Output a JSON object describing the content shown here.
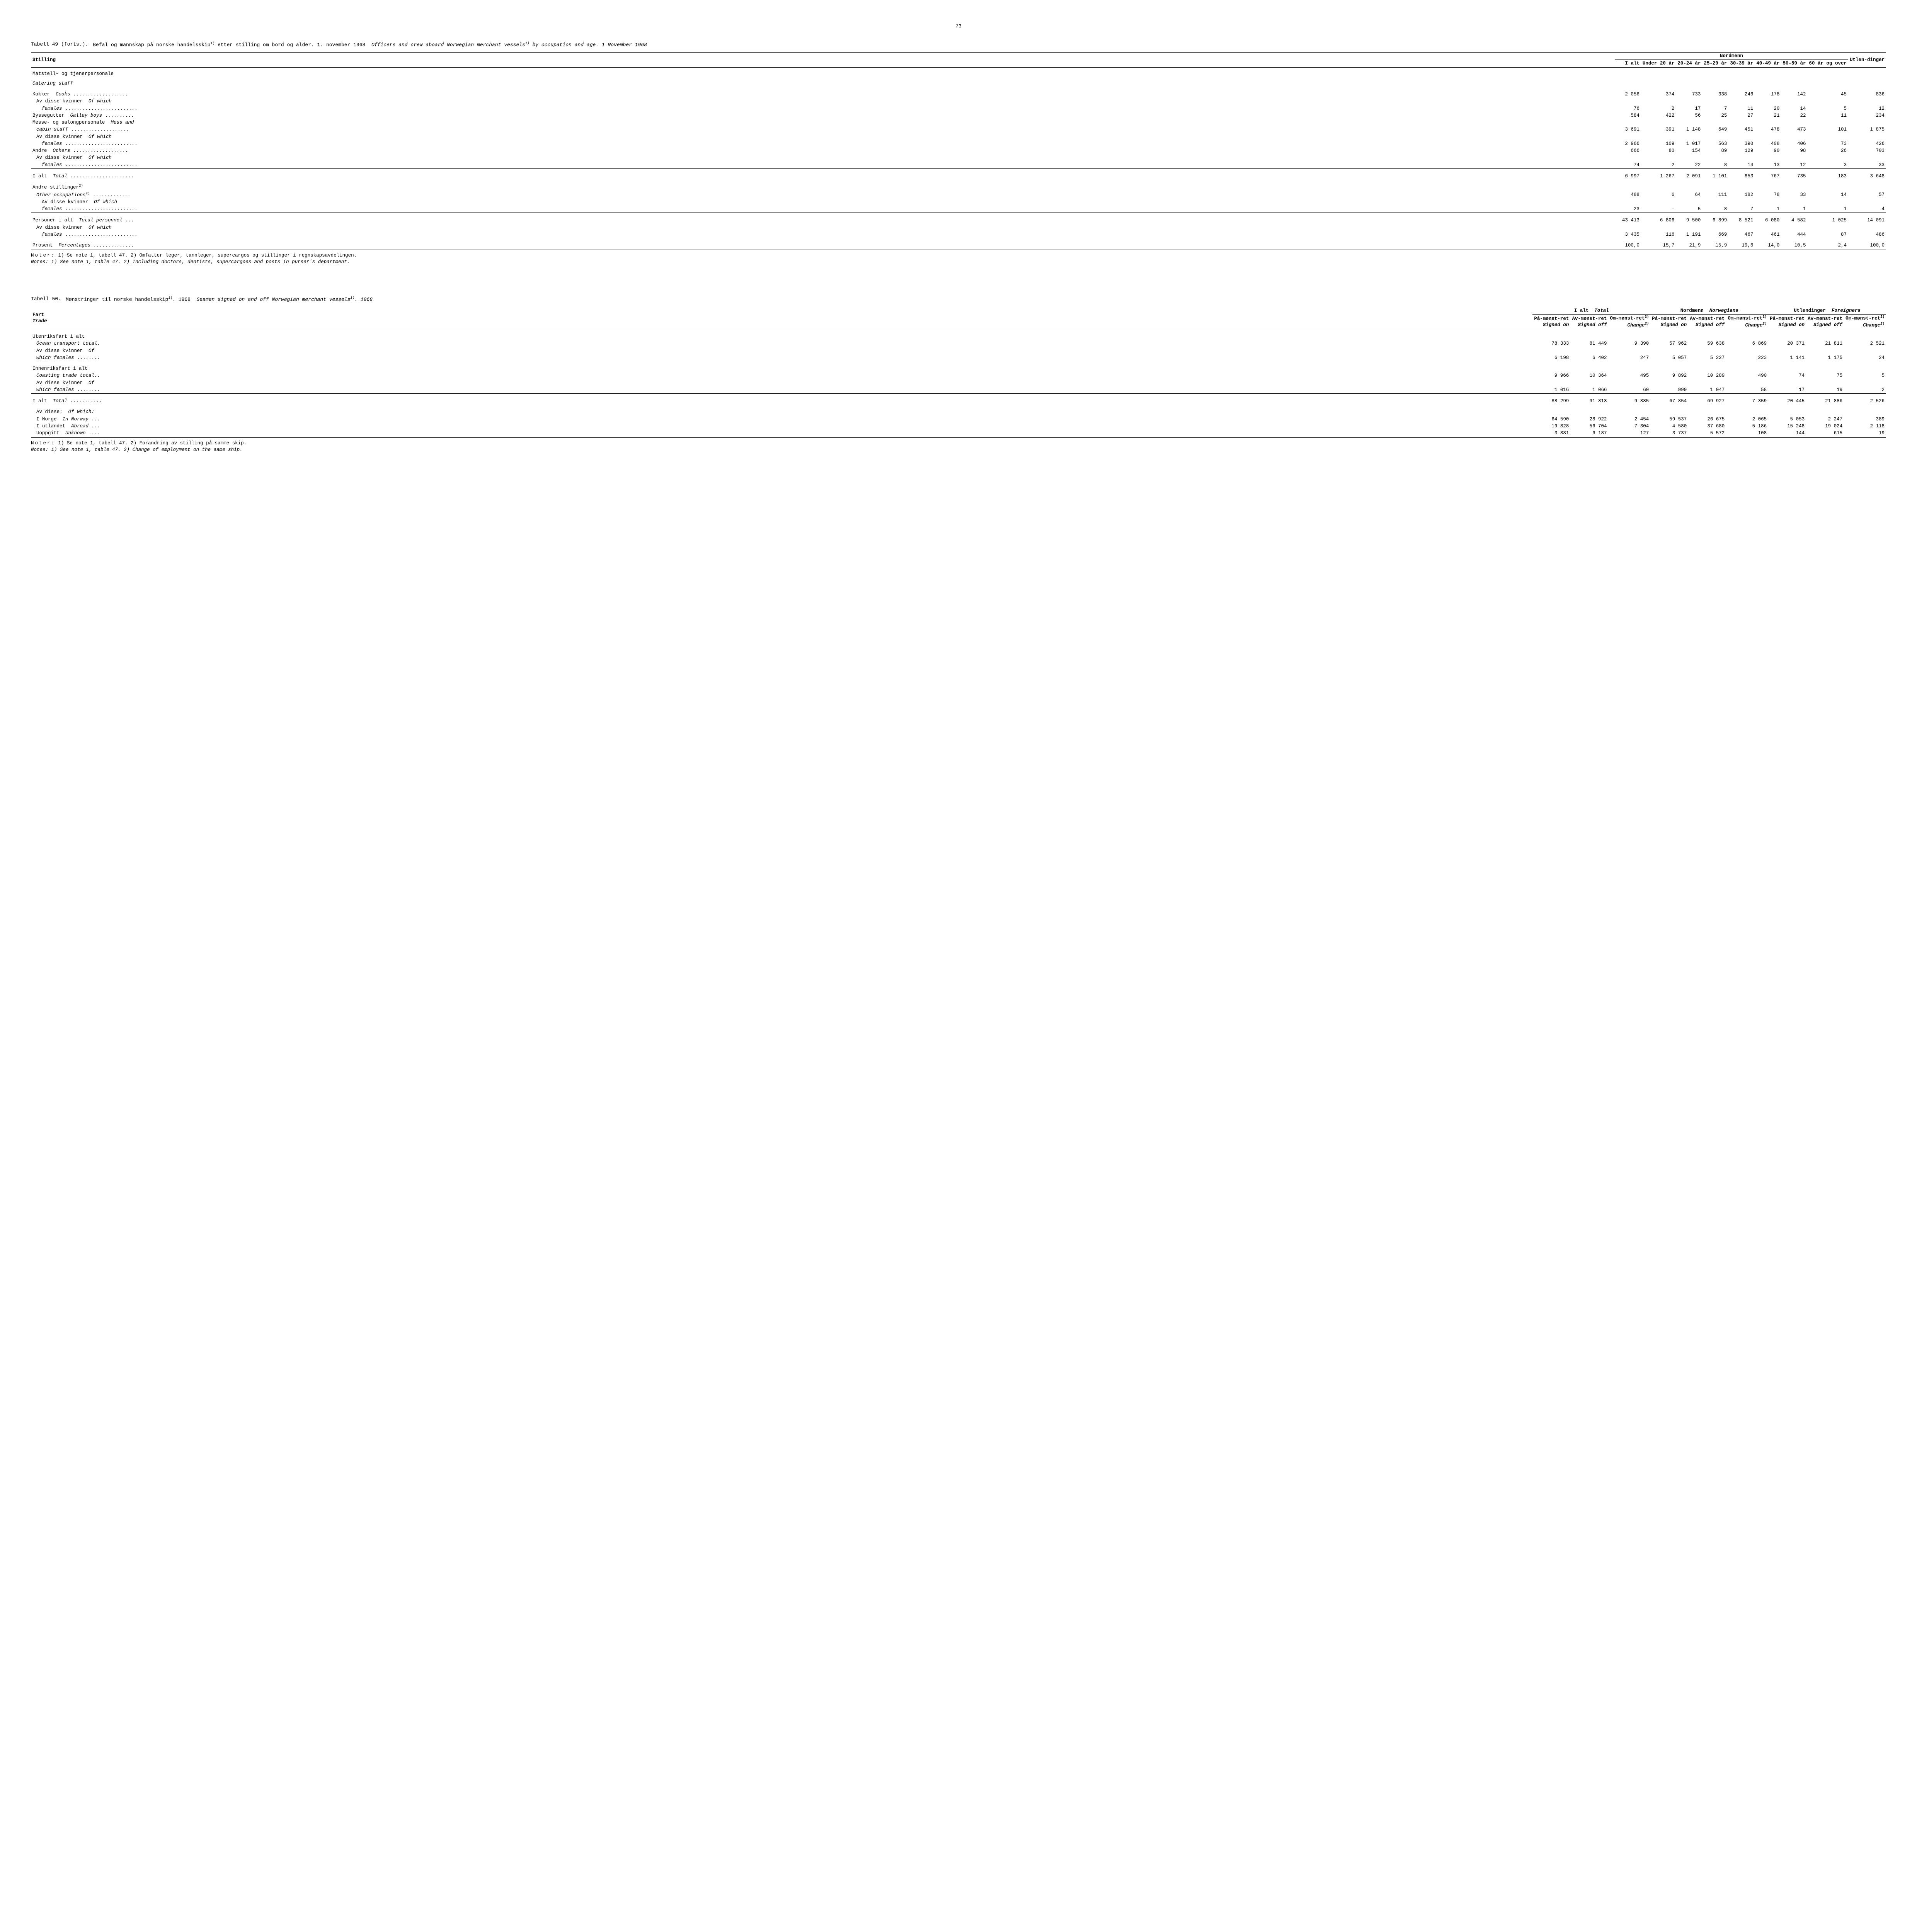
{
  "page_number": "73",
  "table49": {
    "label": "Tabell 49 (forts.).",
    "title_no": "Befal og mannskap på norske handelsskip",
    "title_no_2": " etter stilling om bord og alder. 1. november 1968",
    "title_en": "Officers and crew aboard Norwegian merchant vessels",
    "title_en_2": " by occupation and age.  1 November 1968",
    "sup": "1)",
    "headers": {
      "stilling": "Stilling",
      "nordmenn": "Nordmenn",
      "ialt": "I alt",
      "under20": "Under 20 år",
      "a2024": "20-24 år",
      "a2529": "25-29 år",
      "a3039": "30-39 år",
      "a4049": "40-49 år",
      "a5059": "50-59 år",
      "a60": "60 år og over",
      "utlen": "Utlen-dinger"
    },
    "section_header": "Matstell- og tjenerpersonale",
    "section_header_en": "Catering staff",
    "rows": [
      {
        "label": "Kokker",
        "label_en": "Cooks",
        "dots": "...................",
        "c": [
          "2 056",
          "374",
          "733",
          "338",
          "246",
          "178",
          "142",
          "45",
          "836"
        ]
      },
      {
        "label": "Av disse kvinner",
        "label_en": "Of which",
        "indent": 1
      },
      {
        "label": "females",
        "en_only": true,
        "dots": ".........................",
        "indent": 2,
        "c": [
          "76",
          "2",
          "17",
          "7",
          "11",
          "20",
          "14",
          "5",
          "12"
        ]
      },
      {
        "label": "Byssegutter",
        "label_en": "Galley boys",
        "dots": "..........",
        "c": [
          "584",
          "422",
          "56",
          "25",
          "27",
          "21",
          "22",
          "11",
          "234"
        ]
      },
      {
        "label": "Messe- og salongpersonale",
        "label_en": "Mess and",
        "nowrap": true
      },
      {
        "label": "cabin staff",
        "en_only": true,
        "dots": "....................",
        "indent": 1,
        "c": [
          "3 691",
          "391",
          "1 148",
          "649",
          "451",
          "478",
          "473",
          "101",
          "1 875"
        ]
      },
      {
        "label": "Av disse kvinner",
        "label_en": "Of which",
        "indent": 1
      },
      {
        "label": "females",
        "en_only": true,
        "dots": ".........................",
        "indent": 2,
        "c": [
          "2 966",
          "109",
          "1 017",
          "563",
          "390",
          "408",
          "406",
          "73",
          "426"
        ]
      },
      {
        "label": "Andre",
        "label_en": "Others",
        "dots": "...................",
        "c": [
          "666",
          "80",
          "154",
          "89",
          "129",
          "90",
          "98",
          "26",
          "703"
        ]
      },
      {
        "label": "Av disse kvinner",
        "label_en": "Of which",
        "indent": 1
      },
      {
        "label": "females",
        "en_only": true,
        "dots": ".........................",
        "indent": 2,
        "c": [
          "74",
          "2",
          "22",
          "8",
          "14",
          "13",
          "12",
          "3",
          "33"
        ],
        "rule": true
      },
      {
        "spacer": true
      },
      {
        "label": "I alt",
        "label_en": "Total",
        "dots": "......................",
        "c": [
          "6 997",
          "1 267",
          "2 091",
          "1 101",
          "853",
          "767",
          "735",
          "183",
          "3 648"
        ]
      },
      {
        "spacer": true
      },
      {
        "label": "Andre stillinger",
        "sup": "2)"
      },
      {
        "label": "Other occupations",
        "en_only": true,
        "sup": "2)",
        "dots": ".............",
        "indent": 1,
        "c": [
          "488",
          "6",
          "64",
          "111",
          "182",
          "78",
          "33",
          "14",
          "57"
        ]
      },
      {
        "label": "Av disse kvinner",
        "label_en": "Of which",
        "indent": 2
      },
      {
        "label": "females",
        "en_only": true,
        "dots": ".........................",
        "indent": 2,
        "c": [
          "23",
          "-",
          "5",
          "8",
          "7",
          "1",
          "1",
          "1",
          "4"
        ],
        "rule": true
      },
      {
        "spacer": true
      },
      {
        "label": "Personer i alt",
        "label_en": "Total personnel",
        "dots": "...",
        "c": [
          "43 413",
          "6 806",
          "9 500",
          "6 899",
          "8 521",
          "6 080",
          "4 582",
          "1 025",
          "14 091"
        ]
      },
      {
        "label": "Av disse kvinner",
        "label_en": "Of which",
        "indent": 1
      },
      {
        "label": "females",
        "en_only": true,
        "dots": ".........................",
        "indent": 2,
        "c": [
          "3 435",
          "116",
          "1 191",
          "669",
          "467",
          "461",
          "444",
          "87",
          "486"
        ]
      },
      {
        "spacer": true
      },
      {
        "label": "Prosent",
        "label_en": "Percentages",
        "dots": "..............",
        "c": [
          "100,0",
          "15,7",
          "21,9",
          "15,9",
          "19,6",
          "14,0",
          "10,5",
          "2,4",
          "100,0"
        ]
      }
    ],
    "notes_label": "Noter:",
    "notes_no": "1) Se note 1, tabell 47.  2) Omfatter leger, tannleger, supercargos og stillinger i regnskapsavdelingen.",
    "notes_en_label": "Notes:",
    "notes_en": "1) See note 1, table 47.  2) Including doctors, dentists, supercargoes and posts in purser's department."
  },
  "table50": {
    "label": "Tabell 50.",
    "title_no": "Mønstringer til norske handelsskip",
    "title_no_2": ".  1968",
    "title_en": "Seamen signed on and off Norwegian merchant vessels",
    "title_en_2": ".  1968",
    "sup": "1)",
    "headers": {
      "fart": "Fart",
      "fart_en": "Trade",
      "ialt": "I alt",
      "ialt_en": "Total",
      "nordmenn": "Nordmenn",
      "nordmenn_en": "Norwegians",
      "utlendinger": "Utlendinger",
      "utlendinger_en": "Foreigners",
      "pa": "På-mønst-ret",
      "pa_en": "Signed on",
      "av": "Av-mønst-ret",
      "av_en": "Signed off",
      "om": "Om-mønst-ret",
      "om_sup": "2)",
      "om_en": "Change",
      "om_en_sup": "2)"
    },
    "rows": [
      {
        "label": "Utenriksfart i alt"
      },
      {
        "label": "Ocean transport total.",
        "en_only": true,
        "indent": 1,
        "c": [
          "78 333",
          "81 449",
          "9 390",
          "57 962",
          "59 638",
          "6 869",
          "20 371",
          "21 811",
          "2 521"
        ]
      },
      {
        "label": "Av disse kvinner",
        "label_en": "Of",
        "indent": 1
      },
      {
        "label": "which females",
        "en_only": true,
        "dots": "........",
        "indent": 1,
        "c": [
          "6 198",
          "6 402",
          "247",
          "5 057",
          "5 227",
          "223",
          "1 141",
          "1 175",
          "24"
        ]
      },
      {
        "spacer": true
      },
      {
        "label": "Innenriksfart i alt"
      },
      {
        "label": "Coasting trade total..",
        "en_only": true,
        "indent": 1,
        "c": [
          "9 966",
          "10 364",
          "495",
          "9 892",
          "10 289",
          "490",
          "74",
          "75",
          "5"
        ]
      },
      {
        "label": "Av disse kvinner",
        "label_en": "Of",
        "indent": 1
      },
      {
        "label": "which females",
        "en_only": true,
        "dots": "........",
        "indent": 1,
        "c": [
          "1 016",
          "1 066",
          "60",
          "999",
          "1 047",
          "58",
          "17",
          "19",
          "2"
        ],
        "rule": true
      },
      {
        "spacer": true
      },
      {
        "label": "I alt",
        "label_en": "Total",
        "dots": "...........",
        "c": [
          "88 299",
          "91 813",
          "9 885",
          "67 854",
          "69 927",
          "7 359",
          "20 445",
          "21 886",
          "2 526"
        ]
      },
      {
        "spacer": true
      },
      {
        "label": "Av disse:",
        "label_en": "Of which:",
        "indent": 1
      },
      {
        "label": "I Norge",
        "label_en": "In Norway",
        "dots": "...",
        "indent": 1,
        "c": [
          "64 590",
          "28 922",
          "2 454",
          "59 537",
          "26 675",
          "2 065",
          "5 053",
          "2 247",
          "389"
        ]
      },
      {
        "label": "I utlandet",
        "label_en": "Abroad",
        "dots": "...",
        "indent": 1,
        "c": [
          "19 828",
          "56 704",
          "7 304",
          "4 580",
          "37 680",
          "5 186",
          "15 248",
          "19 024",
          "2 118"
        ]
      },
      {
        "label": "Uoppgitt",
        "label_en": "Unknown",
        "dots": "....",
        "indent": 1,
        "c": [
          "3 881",
          "6 187",
          "127",
          "3 737",
          "5 572",
          "108",
          "144",
          "615",
          "19"
        ]
      }
    ],
    "notes_label": "Noter:",
    "notes_no": "1) Se note 1, tabell 47.  2) Forandring av stilling på samme skip.",
    "notes_en_label": "Notes:",
    "notes_en": "1) See note 1, table 47.  2) Change of employment on the same ship."
  }
}
